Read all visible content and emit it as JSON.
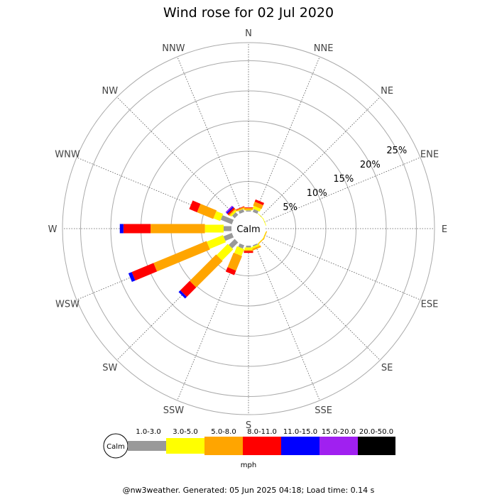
{
  "chart_data": {
    "type": "wind-rose",
    "title": "Wind rose for 02 Jul 2020",
    "directions": [
      "N",
      "NNE",
      "NE",
      "ENE",
      "E",
      "ESE",
      "SE",
      "SSE",
      "S",
      "SSW",
      "SW",
      "WSW",
      "W",
      "WNW",
      "NW",
      "NNW"
    ],
    "rings": [
      5,
      10,
      15,
      20,
      25
    ],
    "ring_labels": [
      "5%",
      "10%",
      "15%",
      "20%",
      "25%"
    ],
    "max_percent": 28,
    "calm_label": "Calm",
    "speed_bins": [
      {
        "label": "1.0-3.0",
        "color": "#999999"
      },
      {
        "label": "3.0-5.0",
        "color": "#ffff00"
      },
      {
        "label": "5.0-8.0",
        "color": "#ffa500"
      },
      {
        "label": "8.0-11.0",
        "color": "#ff0000"
      },
      {
        "label": "11.0-15.0",
        "color": "#0000ff"
      },
      {
        "label": "15.0-20.0",
        "color": "#a020f0"
      },
      {
        "label": "20.0-50.0",
        "color": "#000000"
      }
    ],
    "units": "mph",
    "series": [
      {
        "direction": "N",
        "values": [
          0.2,
          0.1,
          0.3,
          0.1,
          0,
          0,
          0
        ]
      },
      {
        "direction": "NNE",
        "values": [
          0.5,
          0.5,
          0.7,
          0.4,
          0,
          0,
          0
        ]
      },
      {
        "direction": "NE",
        "values": [
          0,
          0.1,
          0,
          0,
          0,
          0,
          0
        ]
      },
      {
        "direction": "ENE",
        "values": [
          0,
          0.1,
          0,
          0,
          0,
          0,
          0
        ]
      },
      {
        "direction": "E",
        "values": [
          0,
          0,
          0,
          0,
          0,
          0,
          0
        ]
      },
      {
        "direction": "ESE",
        "values": [
          0,
          0.1,
          0.1,
          0,
          0,
          0,
          0
        ]
      },
      {
        "direction": "SE",
        "values": [
          0,
          0.1,
          0.1,
          0,
          0,
          0,
          0
        ]
      },
      {
        "direction": "SSE",
        "values": [
          0.2,
          0.3,
          0.3,
          0,
          0,
          0,
          0
        ]
      },
      {
        "direction": "S",
        "values": [
          0.3,
          0.4,
          0.2,
          0.3,
          0,
          0,
          0
        ]
      },
      {
        "direction": "SSW",
        "values": [
          0.6,
          1.2,
          2.6,
          0.8,
          0,
          0,
          0
        ]
      },
      {
        "direction": "SW",
        "values": [
          1.4,
          2.6,
          6.2,
          2.2,
          0.4,
          0,
          0
        ]
      },
      {
        "direction": "WSW",
        "values": [
          1.5,
          2.9,
          9.5,
          3.9,
          0.6,
          0,
          0
        ]
      },
      {
        "direction": "W",
        "values": [
          1.3,
          3.1,
          9.0,
          4.5,
          0.6,
          0,
          0
        ]
      },
      {
        "direction": "WNW",
        "values": [
          2.0,
          1.2,
          2.9,
          1.4,
          0,
          0,
          0
        ]
      },
      {
        "direction": "NW",
        "values": [
          0.6,
          0.3,
          0.2,
          0.3,
          0.2,
          0.2,
          0
        ]
      },
      {
        "direction": "NNW",
        "values": [
          0.5,
          0.1,
          0.2,
          0.1,
          0,
          0,
          0
        ]
      }
    ]
  },
  "footer": "@nw3weather. Generated: 05 Jun 2025 04:18; Load time: 0.14 s"
}
